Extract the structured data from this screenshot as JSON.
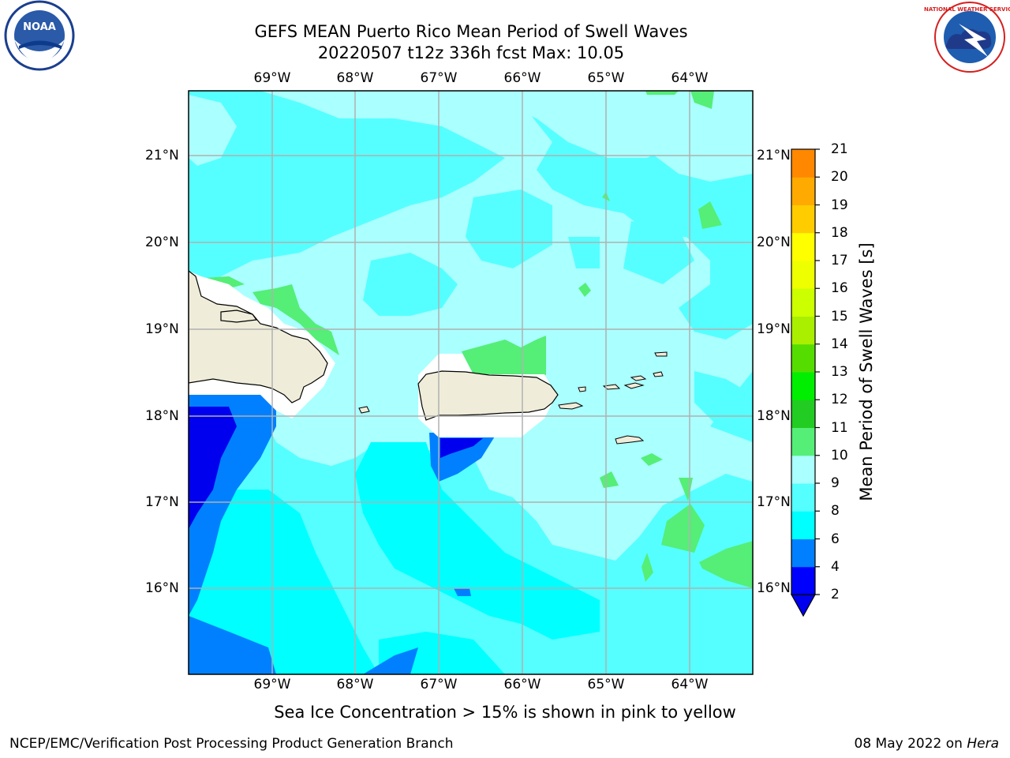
{
  "title_line1": "GEFS MEAN Puerto Rico Mean Period of Swell Waves",
  "title_line2": "20220507 t12z 336h fcst   Max: 10.05",
  "longitude_labels": [
    "69°W",
    "68°W",
    "67°W",
    "66°W",
    "65°W",
    "64°W"
  ],
  "latitude_labels": [
    "21°N",
    "20°N",
    "19°N",
    "18°N",
    "17°N",
    "16°N"
  ],
  "colorbar": {
    "label": "Mean Period of Swell Waves [s]",
    "ticks": [
      "2",
      "4",
      "6",
      "8",
      "9",
      "10",
      "11",
      "12",
      "13",
      "14",
      "15",
      "16",
      "17",
      "18",
      "19",
      "20",
      "21"
    ],
    "colors": [
      "#0000ff",
      "#0080ff",
      "#00ffff",
      "#55ffff",
      "#aaffff",
      "#55ee77",
      "#22cc22",
      "#00ee00",
      "#55dd00",
      "#aaee00",
      "#ccff00",
      "#eeff00",
      "#ffff00",
      "#ffcc00",
      "#ffaa00",
      "#ff8800",
      "#ff5500",
      "#ff2200",
      "#ff0000"
    ],
    "underflow_color": "#0000ee"
  },
  "sea_ice_note": "Sea Ice Concentration > 15% is shown in pink to yellow",
  "footer_left": "NCEP/EMC/Verification Post Processing Product Generation Branch",
  "footer_right_date": "08 May 2022 on ",
  "footer_right_host": "Hera",
  "logos": {
    "noaa": "NOAA",
    "nws": "NATIONAL WEATHER SERVICE"
  },
  "colors": {
    "land": "#efedda",
    "grid": "#b0b0b0"
  }
}
